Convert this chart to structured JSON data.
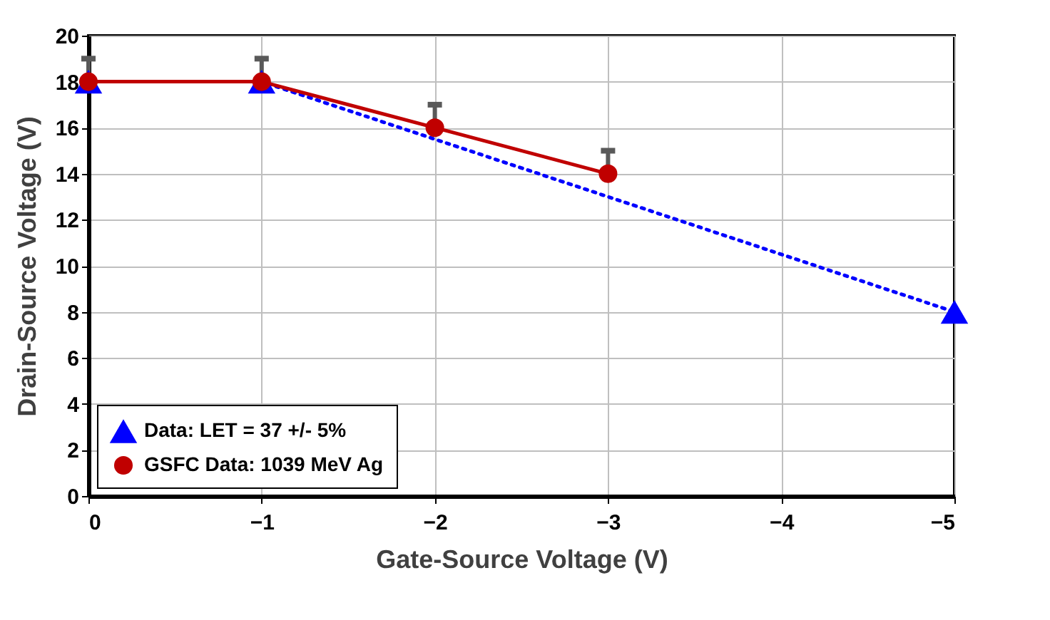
{
  "chart_data": {
    "type": "line",
    "xlabel": "Gate-Source Voltage (V)",
    "ylabel": "Drain-Source Voltage (V)",
    "xlim": [
      0,
      -5
    ],
    "xticks": [
      0,
      -1,
      -2,
      -3,
      -4,
      -5
    ],
    "ylim": [
      0,
      20
    ],
    "yticks": [
      0,
      2,
      4,
      6,
      8,
      10,
      12,
      14,
      16,
      18,
      20
    ],
    "grid": true,
    "legend": "bottom left",
    "series": [
      {
        "name": "Data: LET = 37 +/- 5%",
        "color": "#0000ff",
        "x": [
          0,
          -1,
          -5
        ],
        "values": [
          18,
          18,
          8
        ],
        "marker": "triangle",
        "line_style": "dotted"
      },
      {
        "name": "GSFC Data: 1039 MeV Ag",
        "color": "#c00000",
        "x": [
          0,
          -1,
          -2,
          -3
        ],
        "values": [
          18,
          18,
          16,
          14
        ],
        "marker": "circle",
        "line_style": "solid",
        "errors": [
          [
            18,
            19
          ],
          [
            18,
            19
          ],
          [
            16,
            17
          ],
          [
            14,
            15
          ]
        ]
      }
    ]
  }
}
